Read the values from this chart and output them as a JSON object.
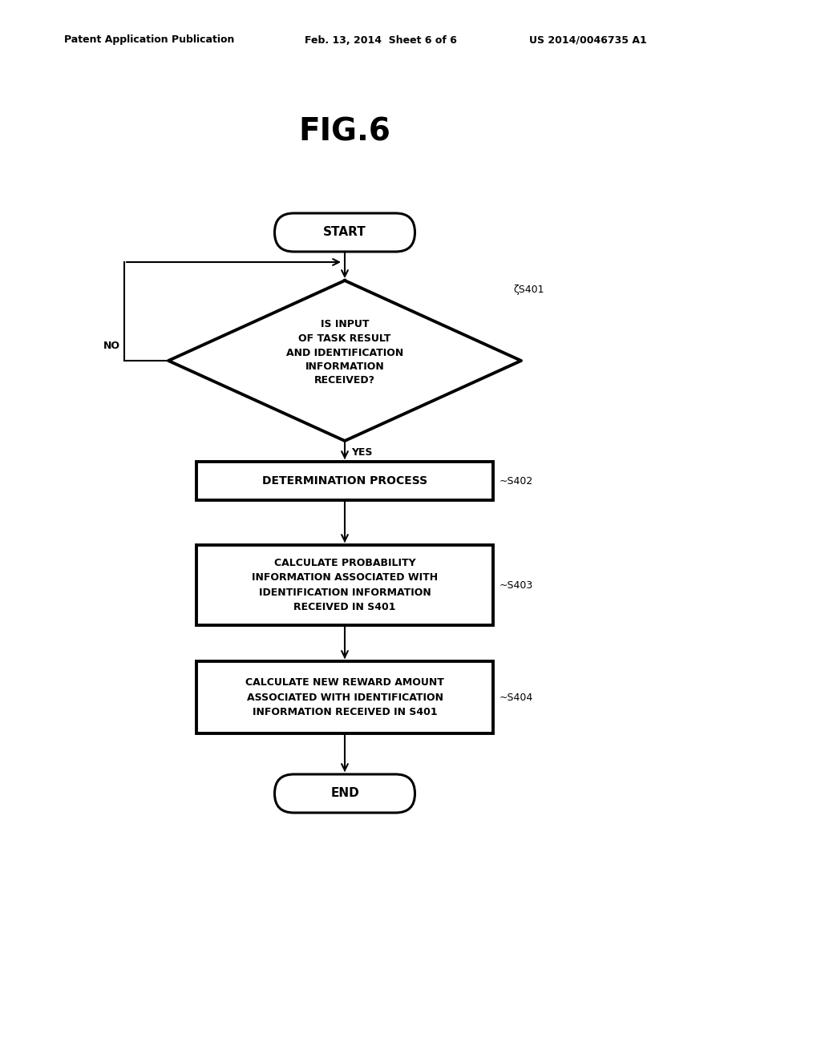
{
  "background_color": "#ffffff",
  "header_left": "Patent Application Publication",
  "header_mid": "Feb. 13, 2014  Sheet 6 of 6",
  "header_right": "US 2014/0046735 A1",
  "fig_title": "FIG.6",
  "start_text": "START",
  "end_text": "END",
  "diamond_lines": [
    "IS INPUT",
    "OF TASK RESULT",
    "AND IDENTIFICATION",
    "INFORMATION",
    "RECEIVED?"
  ],
  "diamond_label": "ζS401",
  "diamond_yes": "YES",
  "diamond_no": "NO",
  "box1_text": "DETERMINATION PROCESS",
  "box1_label": "~S402",
  "box2_lines": [
    "CALCULATE PROBABILITY",
    "INFORMATION ASSOCIATED WITH",
    "IDENTIFICATION INFORMATION",
    "RECEIVED IN S401"
  ],
  "box2_label": "~S403",
  "box3_lines": [
    "CALCULATE NEW REWARD AMOUNT",
    "ASSOCIATED WITH IDENTIFICATION",
    "INFORMATION RECEIVED IN S401"
  ],
  "box3_label": "~S404",
  "line_color": "#000000",
  "text_color": "#000000",
  "box_fill": "#ffffff",
  "box_edge": "#000000",
  "lw_thin": 1.5,
  "lw_thick": 2.8
}
